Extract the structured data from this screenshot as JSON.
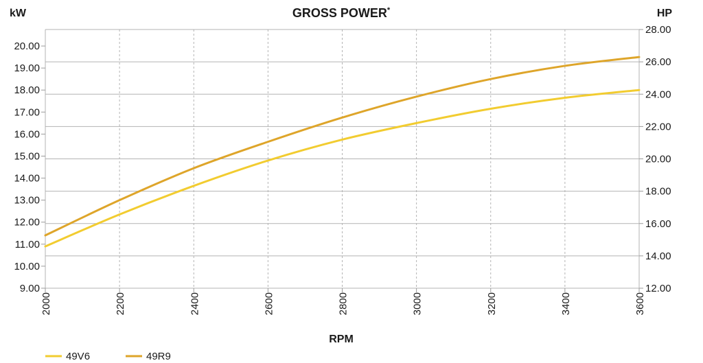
{
  "chart_data": {
    "type": "line",
    "title": "GROSS POWER",
    "title_mark": "*",
    "xlabel": "RPM",
    "ylabel_left": "kW",
    "ylabel_right": "HP",
    "x": [
      2000,
      2200,
      2400,
      2600,
      2800,
      3000,
      3200,
      3400,
      3600
    ],
    "xlim": [
      2000,
      3600
    ],
    "ylim_left": [
      9,
      20.75
    ],
    "ylim_right": [
      12,
      28
    ],
    "left_ticks": [
      "9.00",
      "10.00",
      "11.00",
      "12.00",
      "13.00",
      "14.00",
      "15.00",
      "16.00",
      "17.00",
      "18.00",
      "19.00",
      "20.00"
    ],
    "right_ticks": [
      "12.00",
      "14.00",
      "16.00",
      "18.00",
      "20.00",
      "22.00",
      "24.00",
      "26.00",
      "28.00"
    ],
    "x_ticks": [
      "2000",
      "2200",
      "2400",
      "2600",
      "2800",
      "3000",
      "3200",
      "3400",
      "3600"
    ],
    "grid": true,
    "legend_position": "bottom-left",
    "series": [
      {
        "name": "49V6",
        "color": "#f2cc30",
        "values": [
          10.9,
          12.35,
          13.65,
          14.8,
          15.75,
          16.5,
          17.15,
          17.65,
          18.0
        ]
      },
      {
        "name": "49R9",
        "color": "#dea52a",
        "values": [
          11.4,
          13.0,
          14.45,
          15.65,
          16.75,
          17.7,
          18.5,
          19.1,
          19.5
        ]
      }
    ]
  }
}
